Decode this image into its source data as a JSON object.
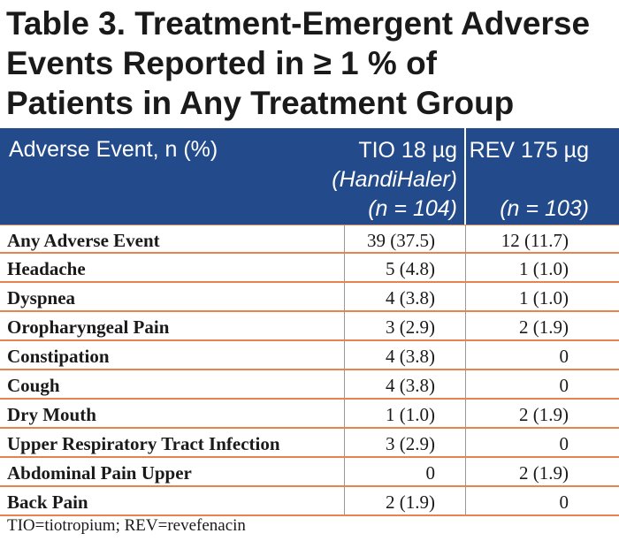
{
  "title_lines": [
    "Table 3. Treatment-Emergent Adverse",
    "Events Reported in  ≥ 1 % of",
    "Patients in Any Treatment Group"
  ],
  "header": {
    "event": "Adverse Event, n (%)",
    "tio": [
      "TIO 18 µg",
      "(HandiHaler)",
      "(n = 104)"
    ],
    "rev": [
      "REV 175 µg",
      "",
      "(n = 103)"
    ]
  },
  "rows": [
    {
      "event": "Any Adverse Event",
      "tio": "39 (37.5)",
      "rev": "12 (11.7)"
    },
    {
      "event": "Headache",
      "tio": "5 (4.8)",
      "rev": "1 (1.0)"
    },
    {
      "event": "Dyspnea",
      "tio": "4 (3.8)",
      "rev": "1 (1.0)"
    },
    {
      "event": "Oropharyngeal Pain",
      "tio": "3 (2.9)",
      "rev": "2 (1.9)"
    },
    {
      "event": "Constipation",
      "tio": "4 (3.8)",
      "rev": "0"
    },
    {
      "event": "Cough",
      "tio": "4 (3.8)",
      "rev": "0"
    },
    {
      "event": "Dry Mouth",
      "tio": "1 (1.0)",
      "rev": "2 (1.9)"
    },
    {
      "event": "Upper Respiratory Tract Infection",
      "tio": "3 (2.9)",
      "rev": "0"
    },
    {
      "event": "Abdominal Pain Upper",
      "tio": "0",
      "rev": "2 (1.9)"
    },
    {
      "event": "Back Pain",
      "tio": "2 (1.9)",
      "rev": "0"
    }
  ],
  "footnote": "TIO=tiotropium; REV=revefenacin",
  "colors": {
    "header_bg": "#234b8c",
    "row_rule": "#e8834d"
  }
}
